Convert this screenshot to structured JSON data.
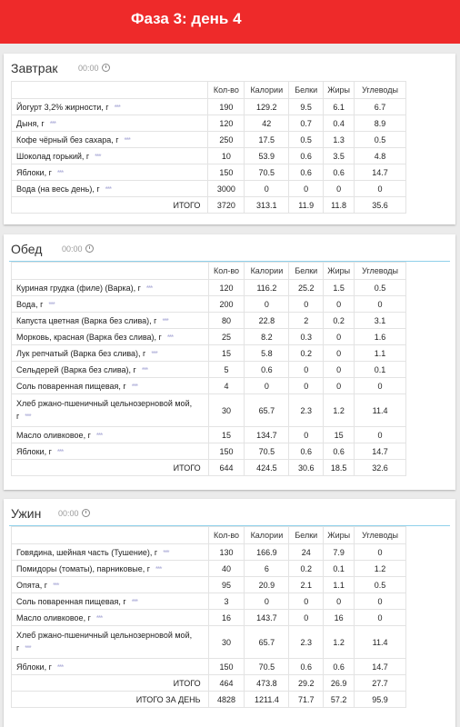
{
  "header": {
    "title": "Фаза 3: день 4"
  },
  "columns": [
    "Кол-во",
    "Калории",
    "Белки",
    "Жиры",
    "Углеводы"
  ],
  "dots": "***",
  "meals": [
    {
      "name": "Завтрак",
      "time": "00:00",
      "rows": [
        {
          "food": "Йогурт 3,2% жирности, г",
          "qty": "190",
          "kcal": "129.2",
          "protein": "9.5",
          "fat": "6.1",
          "carbs": "6.7"
        },
        {
          "food": "Дыня, г",
          "qty": "120",
          "kcal": "42",
          "protein": "0.7",
          "fat": "0.4",
          "carbs": "8.9"
        },
        {
          "food": "Кофе чёрный без сахара, г",
          "qty": "250",
          "kcal": "17.5",
          "protein": "0.5",
          "fat": "1.3",
          "carbs": "0.5"
        },
        {
          "food": "Шоколад горький, г",
          "qty": "10",
          "kcal": "53.9",
          "protein": "0.6",
          "fat": "3.5",
          "carbs": "4.8"
        },
        {
          "food": "Яблоки, г",
          "qty": "150",
          "kcal": "70.5",
          "protein": "0.6",
          "fat": "0.6",
          "carbs": "14.7"
        },
        {
          "food": "Вода (на весь день), г",
          "qty": "3000",
          "kcal": "0",
          "protein": "0",
          "fat": "0",
          "carbs": "0"
        }
      ],
      "total": {
        "label": "ИТОГО",
        "qty": "3720",
        "kcal": "313.1",
        "protein": "11.9",
        "fat": "11.8",
        "carbs": "35.6"
      }
    },
    {
      "name": "Обед",
      "time": "00:00",
      "rows": [
        {
          "food": "Куриная грудка (филе) (Варка), г",
          "qty": "120",
          "kcal": "116.2",
          "protein": "25.2",
          "fat": "1.5",
          "carbs": "0.5"
        },
        {
          "food": "Вода, г",
          "qty": "200",
          "kcal": "0",
          "protein": "0",
          "fat": "0",
          "carbs": "0"
        },
        {
          "food": "Капуста цветная (Варка без слива), г",
          "qty": "80",
          "kcal": "22.8",
          "protein": "2",
          "fat": "0.2",
          "carbs": "3.1"
        },
        {
          "food": "Морковь, красная (Варка без слива), г",
          "qty": "25",
          "kcal": "8.2",
          "protein": "0.3",
          "fat": "0",
          "carbs": "1.6"
        },
        {
          "food": "Лук репчатый (Варка без слива), г",
          "qty": "15",
          "kcal": "5.8",
          "protein": "0.2",
          "fat": "0",
          "carbs": "1.1"
        },
        {
          "food": "Сельдерей (Варка без слива), г",
          "qty": "5",
          "kcal": "0.6",
          "protein": "0",
          "fat": "0",
          "carbs": "0.1"
        },
        {
          "food": "Соль поваренная пищевая, г",
          "qty": "4",
          "kcal": "0",
          "protein": "0",
          "fat": "0",
          "carbs": "0"
        },
        {
          "food": "Хлеб ржано-пшеничный цельнозерновой мой, г",
          "qty": "30",
          "kcal": "65.7",
          "protein": "2.3",
          "fat": "1.2",
          "carbs": "11.4",
          "tall": true
        },
        {
          "food": "Масло оливковое, г",
          "qty": "15",
          "kcal": "134.7",
          "protein": "0",
          "fat": "15",
          "carbs": "0"
        },
        {
          "food": "Яблоки, г",
          "qty": "150",
          "kcal": "70.5",
          "protein": "0.6",
          "fat": "0.6",
          "carbs": "14.7"
        }
      ],
      "total": {
        "label": "ИТОГО",
        "qty": "644",
        "kcal": "424.5",
        "protein": "30.6",
        "fat": "18.5",
        "carbs": "32.6"
      }
    },
    {
      "name": "Ужин",
      "time": "00:00",
      "rows": [
        {
          "food": "Говядина, шейная часть (Тушение), г",
          "qty": "130",
          "kcal": "166.9",
          "protein": "24",
          "fat": "7.9",
          "carbs": "0"
        },
        {
          "food": "Помидоры (томаты), парниковые, г",
          "qty": "40",
          "kcal": "6",
          "protein": "0.2",
          "fat": "0.1",
          "carbs": "1.2"
        },
        {
          "food": "Опята, г",
          "qty": "95",
          "kcal": "20.9",
          "protein": "2.1",
          "fat": "1.1",
          "carbs": "0.5"
        },
        {
          "food": "Соль поваренная пищевая, г",
          "qty": "3",
          "kcal": "0",
          "protein": "0",
          "fat": "0",
          "carbs": "0"
        },
        {
          "food": "Масло оливковое, г",
          "qty": "16",
          "kcal": "143.7",
          "protein": "0",
          "fat": "16",
          "carbs": "0"
        },
        {
          "food": "Хлеб ржано-пшеничный цельнозерновой мой, г",
          "qty": "30",
          "kcal": "65.7",
          "protein": "2.3",
          "fat": "1.2",
          "carbs": "11.4",
          "tall": true
        },
        {
          "food": "Яблоки, г",
          "qty": "150",
          "kcal": "70.5",
          "protein": "0.6",
          "fat": "0.6",
          "carbs": "14.7"
        }
      ],
      "total": {
        "label": "ИТОГО",
        "qty": "464",
        "kcal": "473.8",
        "protein": "29.2",
        "fat": "26.9",
        "carbs": "27.7"
      },
      "day_total": {
        "label": "ИТОГО ЗА ДЕНЬ",
        "qty": "4828",
        "kcal": "1211.4",
        "protein": "71.7",
        "fat": "57.2",
        "carbs": "95.9"
      }
    }
  ]
}
